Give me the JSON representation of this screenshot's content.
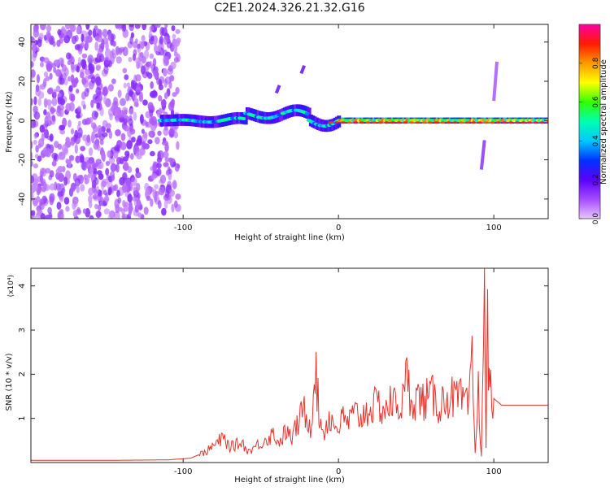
{
  "figure": {
    "title": "C2E1.2024.326.21.32.G16"
  },
  "chart_data": [
    {
      "type": "heatmap",
      "xlabel": "Height of straight line (km)",
      "ylabel": "Frequency (Hz)",
      "xlim": [
        -198,
        135
      ],
      "ylim": [
        -50,
        49
      ],
      "xticks": [
        -100,
        0,
        100
      ],
      "yticks": [
        -40,
        -20,
        0,
        20,
        40
      ],
      "grid": false,
      "colorbar": {
        "label": "Normalized spectral amplitude",
        "range": [
          0,
          1
        ],
        "ticks": [
          0.0,
          0.2,
          0.4,
          0.6,
          0.8
        ],
        "colors": [
          "#e7c6ff",
          "#a64bff",
          "#5a00ff",
          "#0033ff",
          "#00c8ff",
          "#00ffb0",
          "#32ff00",
          "#ffff00",
          "#ff9900",
          "#ff1a00",
          "#ff00a8"
        ]
      },
      "regions": [
        {
          "name": "noise",
          "x_range": [
            -198,
            -103
          ],
          "y_range": [
            -50,
            49
          ],
          "amplitude": "0.0-0.15"
        },
        {
          "name": "line",
          "x_range": [
            -115,
            135
          ],
          "y_center": 0,
          "amplitude": "0.3-0.95"
        },
        {
          "name": "streak",
          "x": -24,
          "y_range": [
            24,
            28
          ],
          "amplitude": "0.2"
        },
        {
          "name": "streak",
          "x": -40,
          "y_range": [
            14,
            18
          ],
          "amplitude": "0.2"
        },
        {
          "name": "streak",
          "x": 92,
          "y_range": [
            -25,
            -10
          ],
          "amplitude": "0.15"
        },
        {
          "name": "streak",
          "x": 100,
          "y_range": [
            10,
            30
          ],
          "amplitude": "0.1"
        }
      ]
    },
    {
      "type": "line",
      "xlabel": "Height of straight line (km)",
      "ylabel": "SNR (10 * v/v)",
      "yscale_note": "(x10⁴)",
      "xlim": [
        -198,
        135
      ],
      "ylim": [
        0,
        4.4
      ],
      "xticks": [
        -100,
        0,
        100
      ],
      "yticks": [
        1,
        2,
        3,
        4
      ],
      "grid": false,
      "series": [
        {
          "color": "#e8322c",
          "x": [
            -198,
            -150,
            -110,
            -95,
            -85,
            -78,
            -74,
            -70,
            -66,
            -62,
            -58,
            -54,
            -50,
            -46,
            -42,
            -38,
            -34,
            -30,
            -26,
            -22,
            -18,
            -15,
            -12,
            -9,
            -6,
            -3,
            0,
            3,
            6,
            9,
            12,
            15,
            18,
            22,
            26,
            30,
            34,
            38,
            42,
            44,
            46,
            50,
            55,
            60,
            65,
            70,
            75,
            80,
            84,
            86,
            88,
            90,
            92,
            94,
            95,
            96,
            97,
            98,
            100,
            105,
            110,
            115,
            120,
            125,
            135
          ],
          "values": [
            0.05,
            0.05,
            0.06,
            0.1,
            0.25,
            0.45,
            0.55,
            0.35,
            0.4,
            0.45,
            0.25,
            0.35,
            0.45,
            0.55,
            0.65,
            0.45,
            0.7,
            0.55,
            0.9,
            1.2,
            0.8,
            2.2,
            0.9,
            0.7,
            1.05,
            0.85,
            0.8,
            1.0,
            0.9,
            1.05,
            1.1,
            1.0,
            1.2,
            1.25,
            1.3,
            1.2,
            1.35,
            1.3,
            1.4,
            2.0,
            1.5,
            1.45,
            1.4,
            1.5,
            1.3,
            1.5,
            1.45,
            1.4,
            1.2,
            2.3,
            0.2,
            1.6,
            0.15,
            4.4,
            0.3,
            3.1,
            1.9,
            1.6,
            1.45,
            1.3,
            1.3,
            1.3,
            1.3,
            1.3,
            1.3
          ]
        }
      ]
    }
  ]
}
